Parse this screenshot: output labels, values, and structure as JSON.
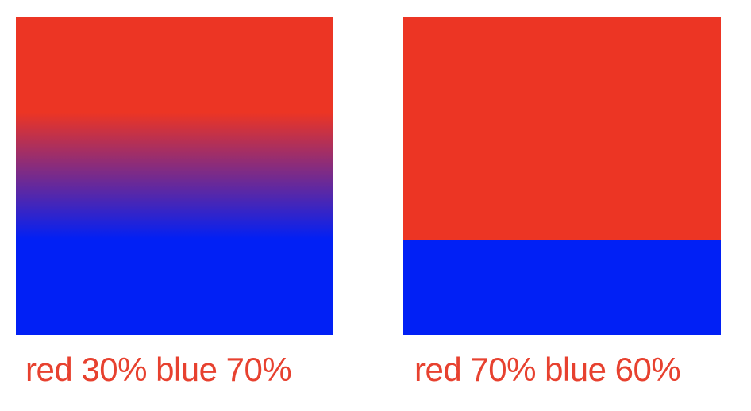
{
  "colors": {
    "red": "#EC3524",
    "blue": "#0120F5",
    "caption": "#E7412F"
  },
  "examples": [
    {
      "caption": "red 30% blue 70%",
      "stops": [
        {
          "color": "red",
          "position_pct": 30
        },
        {
          "color": "blue",
          "position_pct": 70
        }
      ]
    },
    {
      "caption": "red 70% blue 60%",
      "stops": [
        {
          "color": "red",
          "position_pct": 70
        },
        {
          "color": "blue",
          "position_pct": 60
        }
      ]
    }
  ]
}
